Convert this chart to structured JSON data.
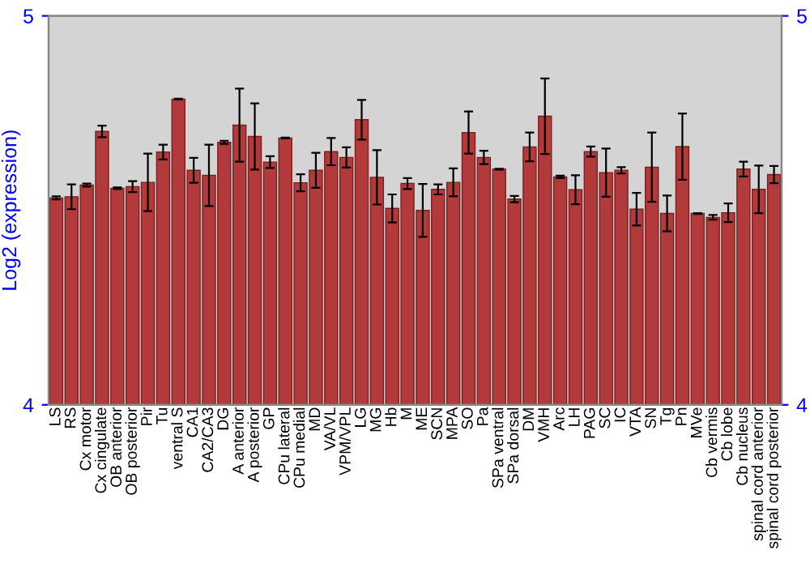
{
  "chart_data": {
    "type": "bar",
    "ylabel": "Log2 (expression)",
    "categories": [
      "LS",
      "RS",
      "Cx motor",
      "Cx cingulate",
      "OB anterior",
      "OB posterior",
      "Pir",
      "Tu",
      "ventral S",
      "CA1",
      "CA2/CA3",
      "DG",
      "A anterior",
      "A posterior",
      "GP",
      "CPu lateral",
      "CPu medial",
      "MD",
      "VA/VL",
      "VPM/VPL",
      "LG",
      "MG",
      "Hb",
      "M",
      "ME",
      "SCN",
      "MPA",
      "SO",
      "Pa",
      "SPa ventral",
      "SPa dorsal",
      "DM",
      "VMH",
      "Arc",
      "LH",
      "PAG",
      "SC",
      "IC",
      "VTA",
      "SN",
      "Tg",
      "Pn",
      "MVe",
      "Cb vermis",
      "Cb lobe",
      "Cb nucleus",
      "spinal cord anterior",
      "spinal cord posterior"
    ],
    "values": [
      4.532,
      4.535,
      4.565,
      4.703,
      4.557,
      4.561,
      4.572,
      4.65,
      4.786,
      4.603,
      4.59,
      4.675,
      4.719,
      4.69,
      4.624,
      4.686,
      4.571,
      4.603,
      4.651,
      4.636,
      4.733,
      4.585,
      4.505,
      4.569,
      4.5,
      4.554,
      4.572,
      4.7,
      4.636,
      4.606,
      4.529,
      4.663,
      4.742,
      4.586,
      4.553,
      4.651,
      4.597,
      4.603,
      4.503,
      4.611,
      4.492,
      4.664,
      4.492,
      4.482,
      4.494,
      4.606,
      4.554,
      4.592
    ],
    "errors": [
      0.004,
      0.032,
      0.004,
      0.015,
      0.002,
      0.014,
      0.074,
      0.019,
      0.001,
      0.032,
      0.079,
      0.004,
      0.094,
      0.085,
      0.015,
      0.001,
      0.022,
      0.045,
      0.035,
      0.026,
      0.051,
      0.07,
      0.036,
      0.014,
      0.068,
      0.013,
      0.036,
      0.054,
      0.017,
      0.001,
      0.008,
      0.037,
      0.097,
      0.003,
      0.037,
      0.013,
      0.062,
      0.008,
      0.042,
      0.089,
      0.046,
      0.085,
      0.001,
      0.006,
      0.024,
      0.019,
      0.061,
      0.022
    ],
    "color": "#b23a3a",
    "ylim": [
      4,
      5
    ],
    "yticks": [
      4,
      5
    ],
    "y2lim": [
      4,
      5
    ],
    "y2ticks": [
      4,
      5
    ],
    "grid": false
  }
}
